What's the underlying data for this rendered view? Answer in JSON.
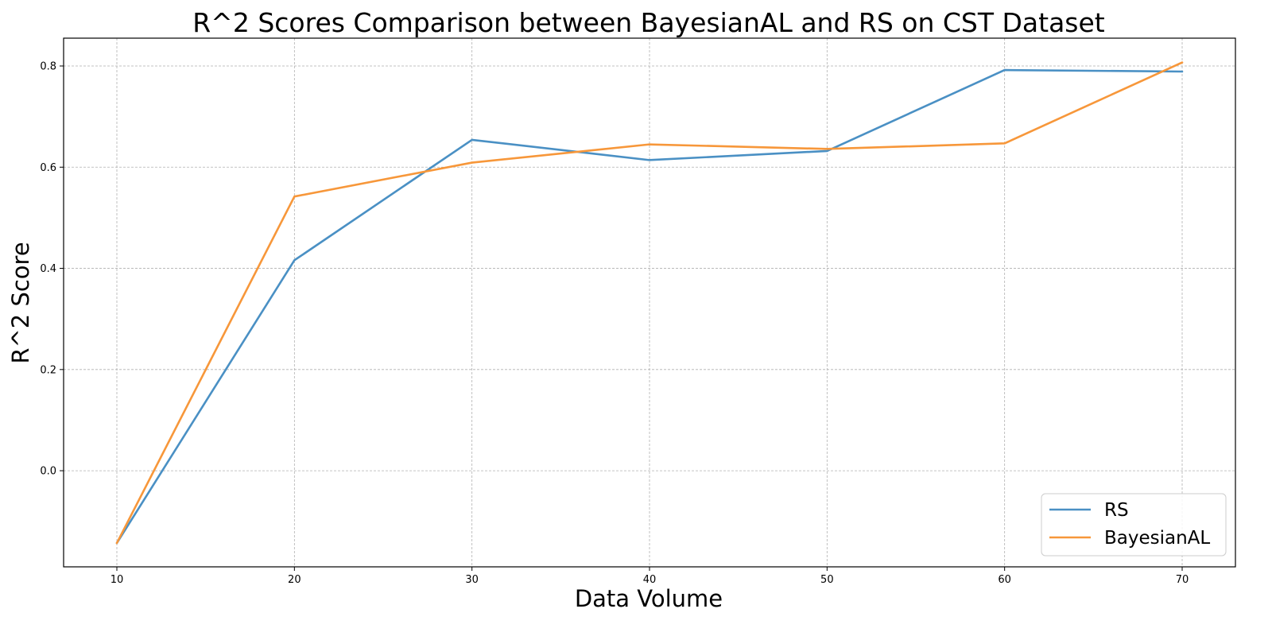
{
  "chart_data": {
    "type": "line",
    "title": "R^2 Scores Comparison between BayesianAL and RS on CST Dataset",
    "xlabel": "Data Volume",
    "ylabel": "R^2 Score",
    "x": [
      10,
      20,
      30,
      40,
      50,
      60,
      70
    ],
    "xlim": [
      7,
      73
    ],
    "ylim": [
      -0.19,
      0.855
    ],
    "x_ticks": [
      10,
      20,
      30,
      40,
      50,
      60,
      70
    ],
    "y_ticks": [
      0.0,
      0.2,
      0.4,
      0.6,
      0.8
    ],
    "y_tick_labels": [
      "0.0",
      "0.2",
      "0.4",
      "0.6",
      "0.8"
    ],
    "grid": true,
    "legend_position": "bottom-right",
    "series": [
      {
        "name": "RS",
        "color": "#4a90c4",
        "values": [
          -0.143,
          0.416,
          0.654,
          0.614,
          0.632,
          0.792,
          0.789
        ]
      },
      {
        "name": "BayesianAL",
        "color": "#f7973a",
        "values": [
          -0.143,
          0.542,
          0.609,
          0.645,
          0.636,
          0.647,
          0.807
        ]
      }
    ]
  }
}
